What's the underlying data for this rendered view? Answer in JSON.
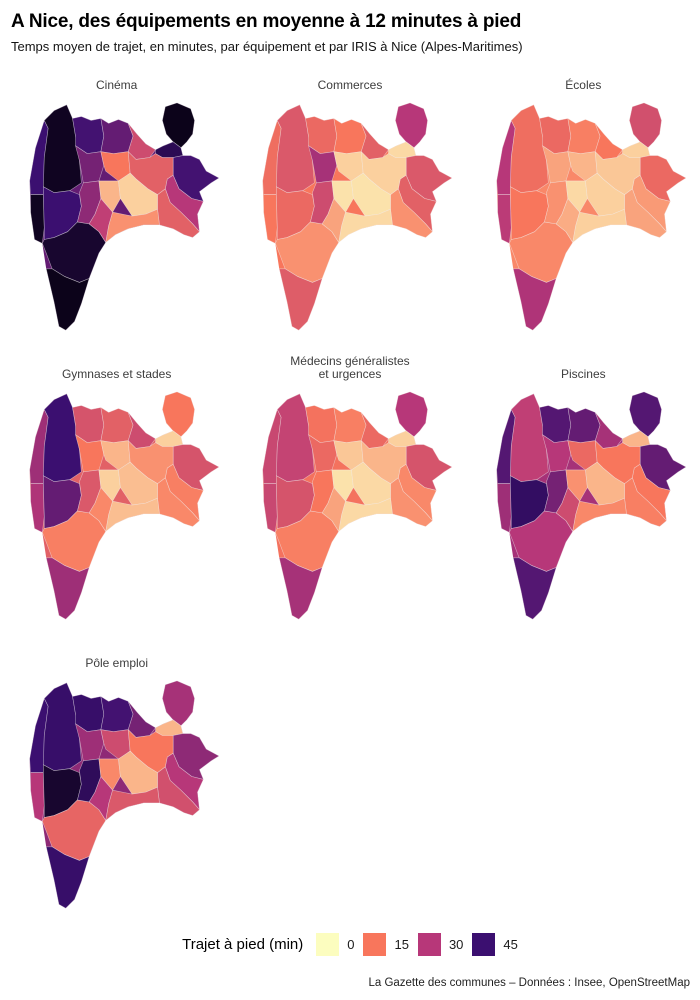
{
  "header": {
    "title": "A Nice, des équipements en moyenne à 12 minutes à pied",
    "subtitle": "Temps moyen de trajet, en minutes, par équipement et par IRIS à Nice (Alpes-Maritimes)"
  },
  "legend": {
    "title": "Trajet à pied (min)",
    "keys": [
      {
        "label": "0",
        "color": "#FCFDBF"
      },
      {
        "label": "15",
        "color": "#F8765C"
      },
      {
        "label": "30",
        "color": "#B73779"
      },
      {
        "label": "45",
        "color": "#3B0F70"
      }
    ]
  },
  "caption": "La Gazette des communes – Données : Insee, OpenStreetMap",
  "chart_data": {
    "type": "heatmap",
    "subtype": "choropleth-small-multiples",
    "title": "A Nice, des équipements en moyenne à 12 minutes à pied",
    "subtitle": "Temps moyen de trajet, en minutes, par équipement et par IRIS à Nice (Alpes-Maritimes)",
    "legend_title": "Trajet à pied (min)",
    "legend_position": "bottom",
    "unit": "minutes",
    "scale": {
      "breaks": [
        0,
        15,
        30,
        45
      ],
      "break_colors": [
        "#FCFDBF",
        "#F8765C",
        "#B73779",
        "#3B0F70"
      ],
      "palette_stops": [
        {
          "v": 0,
          "c": "#FCFDBF"
        },
        {
          "v": 15,
          "c": "#F8765C"
        },
        {
          "v": 30,
          "c": "#B73779"
        },
        {
          "v": 45,
          "c": "#3B0F70"
        },
        {
          "v": 60,
          "c": "#000004"
        }
      ]
    },
    "facets": [
      {
        "label": "Cinéma",
        "values": {
          "base": 40,
          "wsN": 45,
          "wsS": 56,
          "nw": 56,
          "mw": 45,
          "tailN": 54,
          "tailS": 57,
          "n1": 44,
          "n2": 40,
          "n3": 25,
          "neLobe": 57,
          "isthmus": 49,
          "e1": 44,
          "e2": 30,
          "e3": 20,
          "cNW": 38,
          "cN": 15,
          "cNE": 20,
          "cW": 35,
          "c": 8,
          "cE": 5,
          "coW": 28,
          "coC": 12
        }
      },
      {
        "label": "Commerces",
        "values": {
          "base": 15,
          "wsN": 17,
          "wsS": 15,
          "nw": 22,
          "mw": 18,
          "tailN": 12,
          "tailS": 21,
          "n1": 18,
          "n2": 15,
          "n3": 20,
          "neLobe": 30,
          "isthmus": 4,
          "e1": 22,
          "e2": 20,
          "e3": 12,
          "cNW": 32,
          "cN": 5,
          "cNE": 5,
          "cW": 25,
          "c": 3,
          "cE": 3,
          "coW": 10,
          "coC": 4
        }
      },
      {
        "label": "Écoles",
        "values": {
          "base": 13,
          "wsN": 30,
          "wsS": 29,
          "nw": 17,
          "mw": 15,
          "tailN": 13,
          "tailS": 31,
          "n1": 18,
          "n2": 14,
          "n3": 15,
          "neLobe": 24,
          "isthmus": 5,
          "e1": 18,
          "e2": 11,
          "e3": 10,
          "cNW": 10,
          "cN": 8,
          "cNE": 6,
          "cW": 12,
          "c": 4,
          "cE": 5,
          "coW": 9,
          "coC": 5
        }
      },
      {
        "label": "Gymnases et stades",
        "values": {
          "base": 20,
          "wsN": 33,
          "wsS": 31,
          "nw": 45,
          "mw": 40,
          "tailN": 14,
          "tailS": 33,
          "n1": 23,
          "n2": 20,
          "n3": 25,
          "neLobe": 15,
          "isthmus": 5,
          "e1": 23,
          "e2": 14,
          "e3": 13,
          "cNW": 15,
          "cN": 8,
          "cNE": 12,
          "cW": 22,
          "c": 5,
          "cE": 7,
          "coW": 13,
          "coC": 7
        }
      },
      {
        "label": "Médecins généralistes\net urgences",
        "values": {
          "base": 16,
          "wsN": 26,
          "wsS": 26,
          "nw": 27,
          "mw": 23,
          "tailN": 14,
          "tailS": 32,
          "n1": 16,
          "n2": 14,
          "n3": 18,
          "neLobe": 30,
          "isthmus": 5,
          "e1": 23,
          "e2": 13,
          "e3": 12,
          "cNW": 18,
          "cN": 6,
          "cNE": 8,
          "cW": 15,
          "c": 3,
          "cE": 4,
          "coW": 10,
          "coC": 4
        }
      },
      {
        "label": "Piscines",
        "values": {
          "base": 32,
          "wsN": 42,
          "wsS": 33,
          "nw": 28,
          "mw": 47,
          "tailN": 30,
          "tailS": 42,
          "n1": 42,
          "n2": 40,
          "n3": 32,
          "neLobe": 42,
          "isthmus": 8,
          "e1": 40,
          "e2": 15,
          "e3": 14,
          "cNW": 30,
          "cN": 18,
          "cNE": 15,
          "cW": 38,
          "c": 12,
          "cE": 8,
          "coW": 25,
          "coC": 13
        }
      },
      {
        "label": "Pôle emploi",
        "values": {
          "base": 35,
          "wsN": 45,
          "wsS": 30,
          "nw": 46,
          "mw": 54,
          "tailN": 19,
          "tailS": 46,
          "n1": 46,
          "n2": 44,
          "n3": 38,
          "neLobe": 32,
          "isthmus": 8,
          "e1": 35,
          "e2": 30,
          "e3": 24,
          "cNW": 33,
          "cN": 25,
          "cNE": 15,
          "cW": 48,
          "c": 13,
          "cE": 8,
          "coW": 30,
          "coC": 22
        }
      }
    ]
  }
}
